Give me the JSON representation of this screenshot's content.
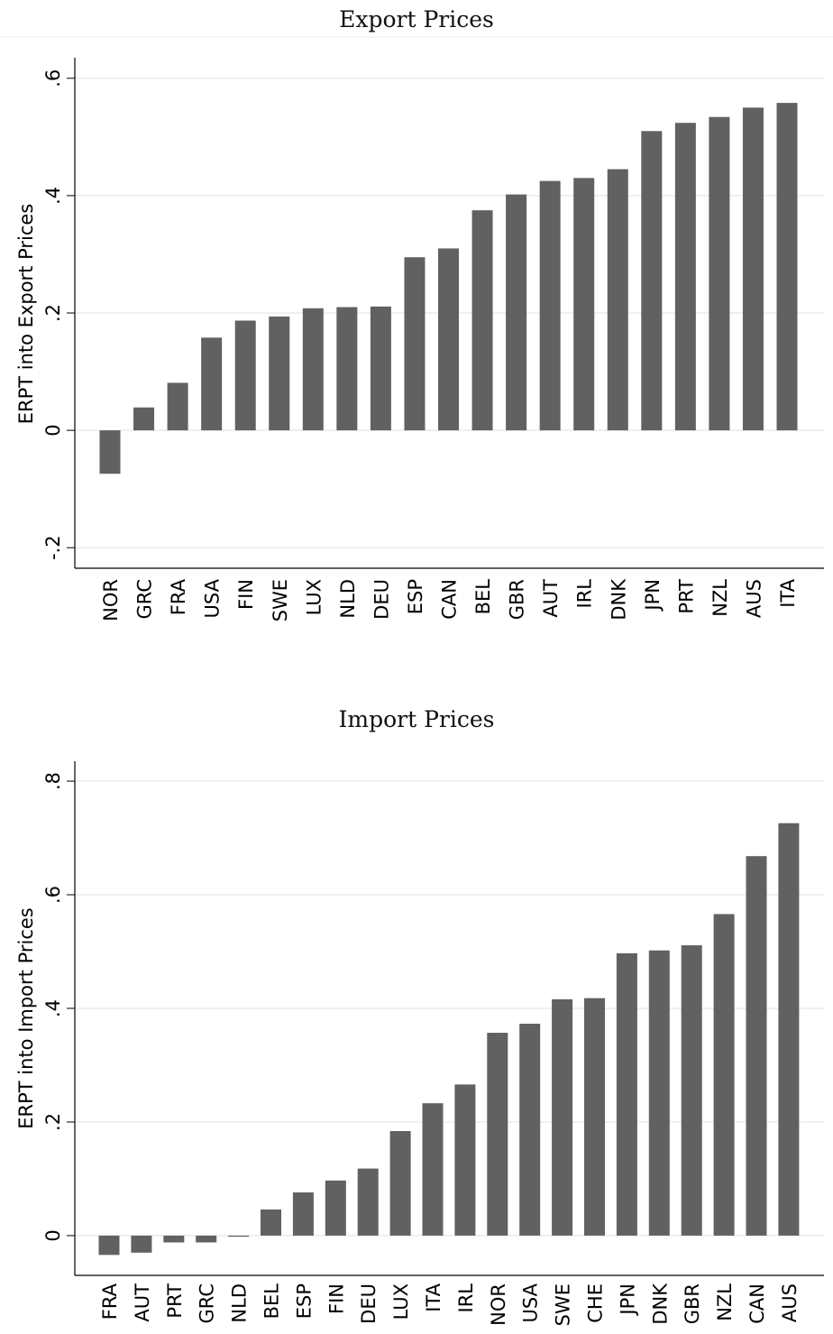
{
  "chart_data": [
    {
      "type": "bar",
      "title": "Export Prices",
      "xlabel": "",
      "ylabel": "ERPT into Export Prices",
      "ylim": [
        -0.235,
        0.635
      ],
      "yticks": [
        -0.2,
        0,
        0.2,
        0.4,
        0.6
      ],
      "ytick_labels": [
        "-.2",
        "0",
        ".2",
        ".4",
        ".6"
      ],
      "grid": true,
      "bar_color": "#616161",
      "categories": [
        "NOR",
        "GRC",
        "FRA",
        "USA",
        "FIN",
        "SWE",
        "LUX",
        "NLD",
        "DEU",
        "ESP",
        "CAN",
        "BEL",
        "GBR",
        "AUT",
        "IRL",
        "DNK",
        "JPN",
        "PRT",
        "NZL",
        "AUS",
        "ITA"
      ],
      "values": [
        -0.074,
        0.039,
        0.081,
        0.158,
        0.187,
        0.194,
        0.208,
        0.21,
        0.211,
        0.295,
        0.31,
        0.375,
        0.402,
        0.425,
        0.43,
        0.445,
        0.51,
        0.524,
        0.534,
        0.55,
        0.558
      ]
    },
    {
      "type": "bar",
      "title": "Import Prices",
      "xlabel": "",
      "ylabel": "ERPT into Import Prices",
      "ylim": [
        -0.07,
        0.835
      ],
      "yticks": [
        0,
        0.2,
        0.4,
        0.6,
        0.8
      ],
      "ytick_labels": [
        "0",
        ".2",
        ".4",
        ".6",
        ".8"
      ],
      "grid": true,
      "bar_color": "#616161",
      "categories": [
        "FRA",
        "AUT",
        "PRT",
        "GRC",
        "NLD",
        "BEL",
        "ESP",
        "FIN",
        "DEU",
        "LUX",
        "ITA",
        "IRL",
        "NOR",
        "USA",
        "SWE",
        "CHE",
        "JPN",
        "DNK",
        "GBR",
        "NZL",
        "CAN",
        "AUS"
      ],
      "values": [
        -0.034,
        -0.03,
        -0.012,
        -0.012,
        -0.002,
        0.046,
        0.076,
        0.097,
        0.118,
        0.184,
        0.233,
        0.266,
        0.357,
        0.373,
        0.416,
        0.418,
        0.497,
        0.502,
        0.511,
        0.566,
        0.668,
        0.726
      ]
    }
  ]
}
